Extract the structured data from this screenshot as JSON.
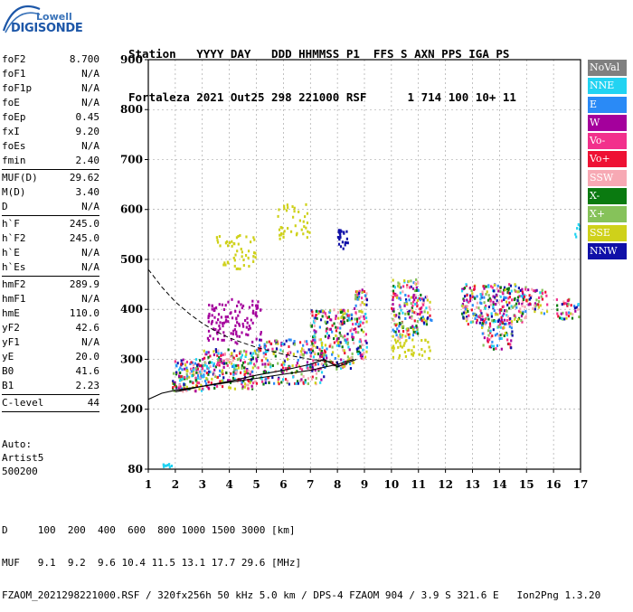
{
  "logo": {
    "line1": "Lowell",
    "line2": "DIGISONDE"
  },
  "header": {
    "line1": "Station   YYYY DAY   DDD HHMMSS P1  FFS S AXN PPS IGA PS",
    "line2": "Fortaleza 2021 Out25 298 221000 RSF      1 714 100 10+ 11"
  },
  "params": [
    {
      "k": "foF2",
      "v": "8.700"
    },
    {
      "k": "foF1",
      "v": "N/A"
    },
    {
      "k": "foF1p",
      "v": "N/A"
    },
    {
      "k": "foE",
      "v": "N/A"
    },
    {
      "k": "foEp",
      "v": "0.45"
    },
    {
      "k": "fxI",
      "v": "9.20"
    },
    {
      "k": "foEs",
      "v": "N/A"
    },
    {
      "k": "fmin",
      "v": "2.40"
    },
    {
      "k": "MUF(D)",
      "v": "29.62"
    },
    {
      "k": "M(D)",
      "v": "3.40"
    },
    {
      "k": "D",
      "v": "N/A"
    },
    {
      "k": "h`F",
      "v": "245.0"
    },
    {
      "k": "h`F2",
      "v": "245.0"
    },
    {
      "k": "h`E",
      "v": "N/A"
    },
    {
      "k": "h`Es",
      "v": "N/A"
    },
    {
      "k": "hmF2",
      "v": "289.9"
    },
    {
      "k": "hmF1",
      "v": "N/A"
    },
    {
      "k": "hmE",
      "v": "110.0"
    },
    {
      "k": "yF2",
      "v": "42.6"
    },
    {
      "k": "yF1",
      "v": "N/A"
    },
    {
      "k": "yE",
      "v": "20.0"
    },
    {
      "k": "B0",
      "v": "41.6"
    },
    {
      "k": "B1",
      "v": "2.23"
    },
    {
      "k": "C-level",
      "v": "44"
    }
  ],
  "auto": {
    "line1": "Auto:",
    "line2": "Artist5",
    "line3": "500200"
  },
  "legend": [
    {
      "label": "NoVal",
      "color": "#808080"
    },
    {
      "label": "NNE",
      "color": "#22d3f2"
    },
    {
      "label": "E",
      "color": "#2a8af6"
    },
    {
      "label": "W",
      "color": "#a4009c"
    },
    {
      "label": "Vo-",
      "color": "#f2308c"
    },
    {
      "label": "Vo+",
      "color": "#ee1133"
    },
    {
      "label": "SSW",
      "color": "#f7a9b4"
    },
    {
      "label": "X-",
      "color": "#0a7a10"
    },
    {
      "label": "X+",
      "color": "#86c25a"
    },
    {
      "label": "SSE",
      "color": "#cfd11a"
    },
    {
      "label": "NNW",
      "color": "#1010a8"
    }
  ],
  "bottom": {
    "line1": "D     100  200  400  600  800 1000 1500 3000 [km]",
    "line2": "MUF   9.1  9.2  9.6 10.4 11.5 13.1 17.7 29.6 [MHz]",
    "line3": "FZAOM_2021298221000.RSF / 320fx256h 50 kHz 5.0 km / DPS-4 FZAOM 904 / 3.9 S 321.6 E   Ion2Png 1.3.20"
  },
  "chart_data": {
    "type": "scatter",
    "title": "",
    "xlabel": "",
    "ylabel": "",
    "xlim": [
      1,
      17
    ],
    "ylim": [
      80,
      900
    ],
    "x_ticks": [
      1,
      2,
      3,
      4,
      5,
      6,
      7,
      8,
      9,
      10,
      11,
      12,
      13,
      14,
      15,
      16,
      17
    ],
    "y_ticks": [
      80,
      200,
      300,
      400,
      500,
      600,
      700,
      800,
      900
    ],
    "grid": "dashed",
    "profile_curve": {
      "x": [
        1.0,
        1.5,
        2.0,
        2.5,
        3.0,
        3.5,
        4.0,
        4.5,
        5.0,
        5.5,
        6.0,
        6.5,
        7.0,
        7.5,
        8.0
      ],
      "y": [
        480,
        445,
        415,
        392,
        372,
        356,
        343,
        333,
        324,
        317,
        310,
        305,
        300,
        297,
        294
      ]
    },
    "trace_lower": {
      "x": [
        1.0,
        1.5,
        2.0,
        3.0,
        4.0,
        5.0,
        6.0,
        7.0,
        8.0,
        8.6
      ],
      "y": [
        220,
        232,
        238,
        246,
        254,
        262,
        270,
        278,
        290,
        300
      ]
    },
    "trace_upper": {
      "x": [
        2.0,
        3.0,
        4.0,
        5.0,
        6.0,
        7.0,
        7.5,
        8.0,
        8.7
      ],
      "y": [
        235,
        246,
        256,
        268,
        278,
        290,
        300,
        285,
        300
      ]
    },
    "clusters": [
      {
        "series": "mixed",
        "x": [
          1.9,
          3.0
        ],
        "y": [
          235,
          300
        ],
        "n": 150
      },
      {
        "series": "mixed",
        "x": [
          3.0,
          5.0
        ],
        "y": [
          240,
          320
        ],
        "n": 220
      },
      {
        "series": "mixed",
        "x": [
          5.0,
          7.5
        ],
        "y": [
          250,
          340
        ],
        "n": 220
      },
      {
        "series": "W",
        "x": [
          3.2,
          5.2
        ],
        "y": [
          330,
          420
        ],
        "n": 120
      },
      {
        "series": "mixed",
        "x": [
          7.0,
          8.6
        ],
        "y": [
          280,
          400
        ],
        "n": 220
      },
      {
        "series": "mixed",
        "x": [
          8.6,
          9.1
        ],
        "y": [
          300,
          440
        ],
        "n": 90
      },
      {
        "series": "SSE",
        "x": [
          3.5,
          5.0
        ],
        "y": [
          480,
          550
        ],
        "n": 50
      },
      {
        "series": "SSE",
        "x": [
          5.8,
          7.0
        ],
        "y": [
          540,
          610
        ],
        "n": 40
      },
      {
        "series": "NNW",
        "x": [
          8.0,
          8.4
        ],
        "y": [
          520,
          560
        ],
        "n": 25
      },
      {
        "series": "mixed",
        "x": [
          10.0,
          11.0
        ],
        "y": [
          340,
          460
        ],
        "n": 160
      },
      {
        "series": "SSE",
        "x": [
          10.0,
          11.5
        ],
        "y": [
          300,
          340
        ],
        "n": 40
      },
      {
        "series": "mixed",
        "x": [
          11.0,
          11.5
        ],
        "y": [
          370,
          430
        ],
        "n": 40
      },
      {
        "series": "mixed",
        "x": [
          12.6,
          15.0
        ],
        "y": [
          370,
          450
        ],
        "n": 260
      },
      {
        "series": "mixed",
        "x": [
          13.3,
          14.5
        ],
        "y": [
          320,
          380
        ],
        "n": 80
      },
      {
        "series": "mixed",
        "x": [
          14.8,
          15.8
        ],
        "y": [
          390,
          440
        ],
        "n": 50
      },
      {
        "series": "mixed",
        "x": [
          16.1,
          17.0
        ],
        "y": [
          380,
          420
        ],
        "n": 40
      },
      {
        "series": "NNE",
        "x": [
          16.8,
          17.0
        ],
        "y": [
          540,
          570
        ],
        "n": 6
      },
      {
        "series": "NNE",
        "x": [
          1.4,
          1.9
        ],
        "y": [
          84,
          90
        ],
        "n": 8
      }
    ]
  }
}
